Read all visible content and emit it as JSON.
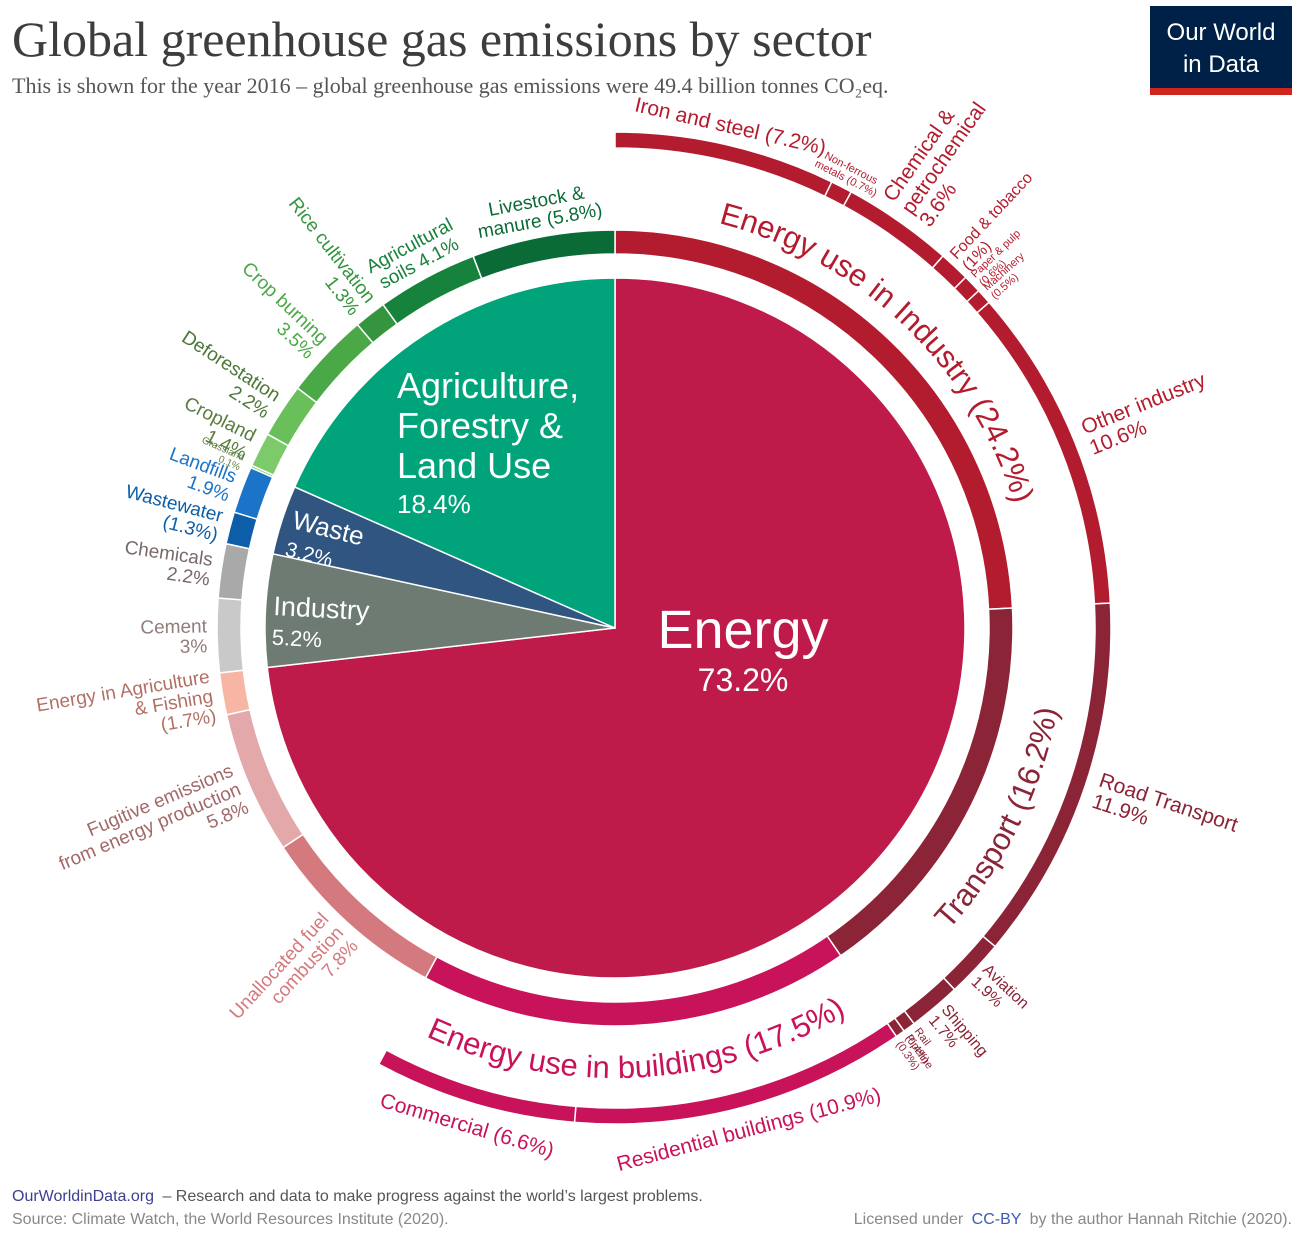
{
  "header": {
    "title": "Global greenhouse gas emissions by sector",
    "subtitle": "This is shown for the year 2016 – global greenhouse gas emissions were 49.4 billion tonnes CO₂eq.",
    "logo": [
      "Our World",
      "in Data"
    ]
  },
  "chart_data": {
    "type": "sunburst",
    "sectors": [
      {
        "name": [
          "Energy"
        ],
        "value": 73.2,
        "value_label": "73.2%",
        "color": "#be1a4a"
      },
      {
        "name": [
          "Industry"
        ],
        "value": 5.2,
        "value_label": "5.2%",
        "color": "#6e7b73"
      },
      {
        "name": [
          "Waste"
        ],
        "value": 3.2,
        "value_label": "3.2%",
        "color": "#2f5580"
      },
      {
        "name": [
          "Agriculture,",
          "Forestry &",
          "Land Use"
        ],
        "value": 18.4,
        "value_label": "18.4%",
        "color": "#00a37a"
      }
    ],
    "subsectors": [
      {
        "name": [
          "Energy use in Industry"
        ],
        "value": 24.2,
        "value_label": "(24.2%)",
        "color": "#b31c2f",
        "items": [
          {
            "name": [
              "Iron and steel"
            ],
            "value": 7.2,
            "value_label": "(7.2%)"
          },
          {
            "name": [
              "Non-ferrous",
              "metals"
            ],
            "value": 0.7,
            "value_label": "(0.7%)"
          },
          {
            "name": [
              "Chemical &",
              "petrochemical"
            ],
            "value": 3.6,
            "value_label": "3.6%"
          },
          {
            "name": [
              "Food & tobacco"
            ],
            "value": 1,
            "value_label": "(1%)"
          },
          {
            "name": [
              "Paper & pulp"
            ],
            "value": 0.6,
            "value_label": "(0.6%)"
          },
          {
            "name": [
              "Machinery"
            ],
            "value": 0.5,
            "value_label": "(0.5%)"
          },
          {
            "name": [
              "Other industry"
            ],
            "value": 10.6,
            "value_label": "10.6%"
          }
        ]
      },
      {
        "name": [
          "Transport"
        ],
        "value": 16.2,
        "value_label": "(16.2%)",
        "color": "#8b2436",
        "items": [
          {
            "name": [
              "Road Transport"
            ],
            "value": 11.9,
            "value_label": "11.9%"
          },
          {
            "name": [
              "Aviation"
            ],
            "value": 1.9,
            "value_label": "1.9%"
          },
          {
            "name": [
              "Shipping"
            ],
            "value": 1.7,
            "value_label": "1.7%"
          },
          {
            "name": [
              "Rail"
            ],
            "value": 0.4,
            "value_label": "(0.4%)"
          },
          {
            "name": [
              "Pipeline"
            ],
            "value": 0.3,
            "value_label": "(0.3%)"
          }
        ]
      },
      {
        "name": [
          "Energy use in buildings"
        ],
        "value": 17.5,
        "value_label": "(17.5%)",
        "color": "#c8125a",
        "items": [
          {
            "name": [
              "Residential buildings"
            ],
            "value": 10.9,
            "value_label": "(10.9%)"
          },
          {
            "name": [
              "Commercial"
            ],
            "value": 6.6,
            "value_label": "(6.6%)"
          }
        ]
      },
      {
        "name": [
          "Unallocated fuel",
          "combustion"
        ],
        "value": 7.8,
        "value_label": "7.8%",
        "color": "#d47a7f"
      },
      {
        "name": [
          "Fugitive emissions",
          "from energy production"
        ],
        "value": 5.8,
        "value_label": "5.8%",
        "color": "#e2a8aa"
      },
      {
        "name": [
          "Energy in Agriculture",
          "& Fishing"
        ],
        "value": 1.7,
        "value_label": "(1.7%)",
        "color": "#f7b5a3"
      },
      {
        "name": [
          "Cement"
        ],
        "value": 3,
        "value_label": "3%",
        "color": "#c9c9c9"
      },
      {
        "name": [
          "Chemicals"
        ],
        "value": 2.2,
        "value_label": "2.2%",
        "color": "#a9a9a9"
      },
      {
        "name": [
          "Wastewater"
        ],
        "value": 1.3,
        "value_label": "(1.3%)",
        "color": "#0c5ea8"
      },
      {
        "name": [
          "Landfills"
        ],
        "value": 1.9,
        "value_label": "1.9%",
        "color": "#1b74c8"
      },
      {
        "name": [
          "Grassland"
        ],
        "value": 0.1,
        "value_label": "0.1%",
        "color": "#88d06f"
      },
      {
        "name": [
          "Cropland"
        ],
        "value": 1.4,
        "value_label": "1.4%",
        "color": "#7cca6a"
      },
      {
        "name": [
          "Deforestation"
        ],
        "value": 2.2,
        "value_label": "2.2%",
        "color": "#69bf5a"
      },
      {
        "name": [
          "Crop burning"
        ],
        "value": 3.5,
        "value_label": "3.5%",
        "color": "#4ba846"
      },
      {
        "name": [
          "Rice cultivation"
        ],
        "value": 1.3,
        "value_label": "1.3%",
        "color": "#35953e"
      },
      {
        "name": [
          "Agricultural",
          "soils"
        ],
        "value": 4.1,
        "value_label": "4.1%",
        "color": "#17823c"
      },
      {
        "name": [
          "Livestock &",
          "manure"
        ],
        "value": 5.8,
        "value_label": "(5.8%)",
        "color": "#0b6b37"
      }
    ]
  },
  "footer": {
    "site": "OurWorldinData.org",
    "tagline": "– Research and data to make progress against the world’s largest problems.",
    "source": "Source: Climate Watch, the World Resources Institute (2020).",
    "license_pre": "Licensed under",
    "license_link": "CC-BY",
    "license_post": "by the author Hannah Ritchie  (2020)."
  }
}
